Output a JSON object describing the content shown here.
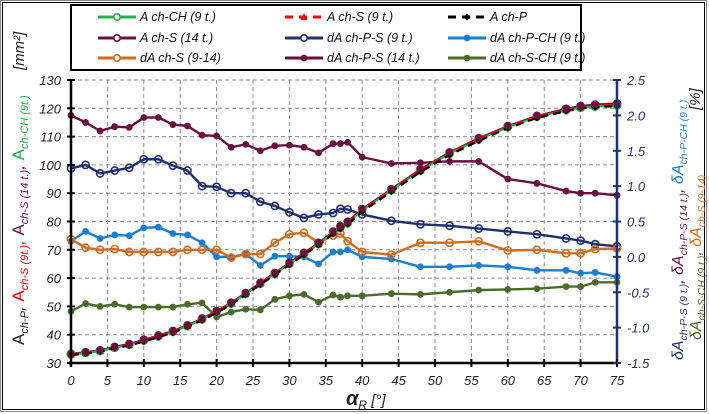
{
  "chart_data": {
    "type": "line",
    "title": "",
    "xlabel": "αR [°]",
    "xlabel_main": "α",
    "xlabel_sub": "R",
    "xlabel_unit": "[°]",
    "xlim": [
      0,
      75
    ],
    "x_ticks": [
      0,
      5,
      10,
      15,
      20,
      25,
      30,
      35,
      40,
      45,
      50,
      55,
      60,
      65,
      70,
      75
    ],
    "ylabel_left": "A ch-P, A ch-S (9 t.), A ch-S (14 t.), A ch-CH (9 t.) [mm²]",
    "ylim_left": [
      30,
      130
    ],
    "y_ticks_left": [
      30,
      40,
      50,
      60,
      70,
      80,
      90,
      100,
      110,
      120,
      130
    ],
    "ylabel_right": "δA ch-P-S (9 t.), δA ch-P-S (14 t.), δA ch-P-CH (9 t.), δA ch-S-CH (9 t.), δA ch-S (9-14) [%]",
    "ylim_right": [
      -1.5,
      2.5
    ],
    "y_ticks_right": [
      "-1.5",
      "-1.0",
      "-0.5",
      "0.0",
      "0.5",
      "1.0",
      "1.5",
      "2.0",
      "2.5"
    ],
    "grid": true,
    "legend_position": "top (inside frame, above plot)",
    "x": [
      0,
      2,
      4,
      6,
      8,
      10,
      12,
      14,
      16,
      18,
      20,
      22,
      24,
      26,
      28,
      30,
      32,
      34,
      36,
      37,
      38,
      40,
      44,
      48,
      52,
      56,
      60,
      64,
      68,
      70,
      72,
      75
    ],
    "series": [
      {
        "name": "A ch-CH (9 t.)",
        "axis": "left",
        "color": "#22b14c",
        "style": "solid",
        "marker": "open-circle",
        "values": [
          33,
          33.5,
          34.2,
          35.4,
          36.4,
          37.9,
          39.4,
          41,
          43,
          45.4,
          48,
          51,
          54.4,
          58,
          61.5,
          65,
          68.5,
          72,
          76,
          77.8,
          79.4,
          84,
          91,
          98,
          104,
          109,
          113.3,
          117,
          119.3,
          120.2,
          120.6,
          121
        ]
      },
      {
        "name": "A ch-S (9 t.)",
        "axis": "left",
        "color": "#ff0000",
        "style": "dashed",
        "marker": "triangle",
        "values": [
          33,
          33.6,
          34.3,
          35.5,
          36.5,
          38,
          39.5,
          41.1,
          43.1,
          45.5,
          48.1,
          51.1,
          54.5,
          58.1,
          61.6,
          65.1,
          68.6,
          72.1,
          76.1,
          78,
          79.6,
          84.1,
          91.1,
          98.1,
          104.1,
          109.1,
          113.5,
          117.1,
          119.5,
          120.5,
          121,
          121.4
        ]
      },
      {
        "name": "A ch-P",
        "axis": "left",
        "color": "#000000",
        "style": "dashed",
        "marker": "diamond",
        "values": [
          32.8,
          33.3,
          34,
          35.2,
          36.2,
          37.6,
          39.1,
          40.7,
          42.7,
          45.1,
          47.7,
          50.7,
          54.1,
          57.7,
          61.2,
          64.7,
          68.2,
          71.7,
          75.6,
          77.4,
          79,
          83.5,
          90.5,
          97.5,
          103.5,
          108.5,
          113,
          116.6,
          119,
          120,
          120.4,
          120.8
        ]
      },
      {
        "name": "A ch-S (14 t.)",
        "axis": "left",
        "color": "#6b0f3c",
        "style": "solid",
        "marker": "open-circle",
        "values": [
          33.2,
          33.8,
          34.5,
          35.7,
          36.7,
          38.2,
          39.7,
          41.3,
          43.3,
          45.7,
          48.3,
          51.3,
          54.7,
          58.3,
          61.8,
          65.4,
          68.9,
          72.4,
          76.4,
          78.3,
          79.9,
          84.4,
          91.4,
          98.4,
          104.4,
          109.4,
          113.7,
          117.3,
          119.8,
          120.8,
          121.3,
          121.7
        ]
      },
      {
        "name": "dA ch-P-S (9 t.)",
        "axis": "right",
        "color": "#1f3070",
        "style": "solid",
        "marker": "open-circle",
        "values": [
          1.25,
          1.3,
          1.18,
          1.22,
          1.26,
          1.38,
          1.38,
          1.29,
          1.22,
          1.0,
          0.99,
          0.9,
          0.9,
          0.78,
          0.72,
          0.63,
          0.55,
          0.6,
          0.62,
          0.68,
          0.67,
          0.6,
          0.51,
          0.46,
          0.44,
          0.4,
          0.36,
          0.32,
          0.26,
          0.23,
          0.18,
          0.15
        ]
      },
      {
        "name": "dA ch-P-CH (9 t.)",
        "axis": "right",
        "color": "#1a7fd0",
        "style": "solid",
        "marker": "dot",
        "values": [
          0.22,
          0.36,
          0.26,
          0.31,
          0.3,
          0.41,
          0.42,
          0.33,
          0.31,
          0.2,
          0.0,
          0.0,
          0.04,
          -0.12,
          0.01,
          0.01,
          0.0,
          -0.1,
          0.07,
          0.07,
          0.1,
          0.0,
          -0.03,
          -0.14,
          -0.14,
          -0.12,
          -0.14,
          -0.19,
          -0.19,
          -0.23,
          -0.22,
          -0.28
        ]
      },
      {
        "name": "dA ch-S (9-14)",
        "axis": "right",
        "color": "#d46a1c",
        "style": "solid",
        "marker": "open-circle",
        "values": [
          0.25,
          0.13,
          0.1,
          0.11,
          0.07,
          0.07,
          0.07,
          0.07,
          0.1,
          0.1,
          0.1,
          -0.01,
          0.04,
          0.04,
          0.2,
          0.32,
          0.34,
          0.2,
          0.3,
          0.33,
          0.22,
          0.07,
          0.03,
          0.2,
          0.2,
          0.22,
          0.09,
          0.1,
          0.05,
          0.05,
          0.11,
          0.12
        ]
      },
      {
        "name": "dA ch-P-S (14 t.)",
        "axis": "right",
        "color": "#6b0f3c",
        "style": "solid",
        "marker": "dot",
        "values": [
          2.0,
          1.9,
          1.78,
          1.84,
          1.83,
          1.97,
          1.97,
          1.87,
          1.85,
          1.72,
          1.71,
          1.55,
          1.59,
          1.5,
          1.57,
          1.58,
          1.55,
          1.47,
          1.6,
          1.6,
          1.62,
          1.41,
          1.32,
          1.33,
          1.35,
          1.35,
          1.1,
          1.04,
          0.93,
          0.9,
          0.9,
          0.87
        ]
      },
      {
        "name": "dA ch-S-CH (9 t.)",
        "axis": "right",
        "color": "#4a6b2a",
        "style": "solid",
        "marker": "dot",
        "values": [
          -0.77,
          -0.66,
          -0.7,
          -0.67,
          -0.71,
          -0.71,
          -0.71,
          -0.71,
          -0.67,
          -0.65,
          -0.85,
          -0.78,
          -0.74,
          -0.75,
          -0.6,
          -0.55,
          -0.53,
          -0.64,
          -0.54,
          -0.57,
          -0.55,
          -0.55,
          -0.52,
          -0.53,
          -0.5,
          -0.47,
          -0.46,
          -0.45,
          -0.42,
          -0.42,
          -0.36,
          -0.36
        ]
      }
    ]
  },
  "legend": {
    "items": [
      {
        "label": "A ch-CH (9 t.)",
        "color": "#22b14c",
        "dash": false,
        "marker": "open-circle"
      },
      {
        "label": "A ch-S (9 t.)",
        "color": "#ff0000",
        "dash": true,
        "marker": "triangle"
      },
      {
        "label": "A ch-P",
        "color": "#000000",
        "dash": true,
        "marker": "diamond"
      },
      {
        "label": "A ch-S (14 t.)",
        "color": "#6b0f3c",
        "dash": false,
        "marker": "open-circle"
      },
      {
        "label": "dA ch-P-S (9 t.)",
        "color": "#1f3070",
        "dash": false,
        "marker": "open-circle"
      },
      {
        "label": "dA ch-P-CH (9 t.)",
        "color": "#1a7fd0",
        "dash": false,
        "marker": "dot"
      },
      {
        "label": "dA ch-S (9-14)",
        "color": "#d46a1c",
        "dash": false,
        "marker": "open-circle"
      },
      {
        "label": "dA ch-P-S (14 t.)",
        "color": "#6b0f3c",
        "dash": false,
        "marker": "dot"
      },
      {
        "label": "dA ch-S-CH (9 t.)",
        "color": "#4a6b2a",
        "dash": false,
        "marker": "dot"
      }
    ]
  },
  "axis_labels": {
    "left_unit": "[mm²]",
    "right_unit": "[%]",
    "x_main": "α",
    "x_sub": "R",
    "x_unit": "[°]"
  }
}
